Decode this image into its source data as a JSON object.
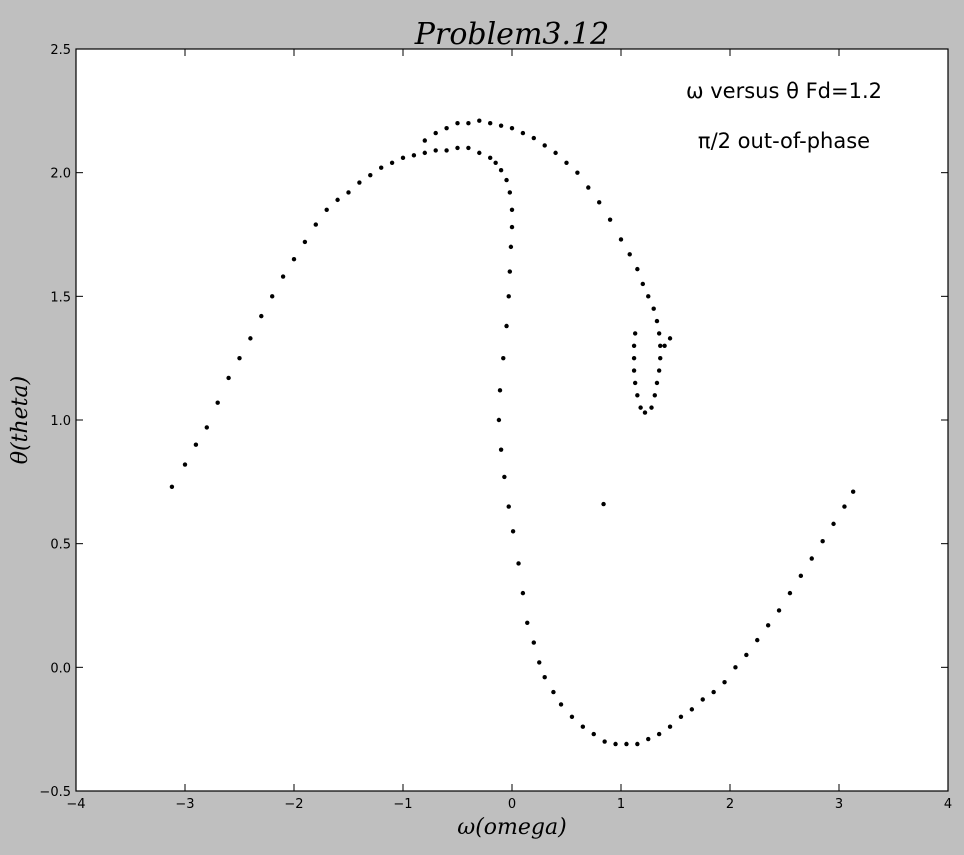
{
  "chart_data": {
    "type": "scatter",
    "title": "Problem3.12",
    "xlabel": "ω(omega)",
    "ylabel": "θ(theta)",
    "xlim": [
      -4,
      4
    ],
    "ylim": [
      -0.5,
      2.5
    ],
    "xticks": [
      -4,
      -3,
      -2,
      -1,
      0,
      1,
      2,
      3,
      4
    ],
    "xtick_labels": [
      "−4",
      "−3",
      "−2",
      "−1",
      "0",
      "1",
      "2",
      "3",
      "4"
    ],
    "yticks": [
      -0.5,
      0.0,
      0.5,
      1.0,
      1.5,
      2.0,
      2.5
    ],
    "ytick_labels": [
      "−0.5",
      "0.0",
      "0.5",
      "1.0",
      "1.5",
      "2.0",
      "2.5"
    ],
    "grid": false,
    "marker_color": "#000000",
    "background": "#ffffff",
    "figure_background": "#bfbfbf",
    "annotations": [
      {
        "text": "ω versus θ   Fd=1.2"
      },
      {
        "text": "π/2 out-of-phase"
      }
    ],
    "points": [
      [
        -3.12,
        0.73
      ],
      [
        -3.0,
        0.82
      ],
      [
        -2.9,
        0.9
      ],
      [
        -2.8,
        0.97
      ],
      [
        -2.7,
        1.07
      ],
      [
        -2.6,
        1.17
      ],
      [
        -2.5,
        1.25
      ],
      [
        -2.4,
        1.33
      ],
      [
        -2.3,
        1.42
      ],
      [
        -2.2,
        1.5
      ],
      [
        -2.1,
        1.58
      ],
      [
        -2.0,
        1.65
      ],
      [
        -1.9,
        1.72
      ],
      [
        -1.8,
        1.79
      ],
      [
        -1.7,
        1.85
      ],
      [
        -1.6,
        1.89
      ],
      [
        -1.5,
        1.92
      ],
      [
        -1.4,
        1.96
      ],
      [
        -1.3,
        1.99
      ],
      [
        -1.2,
        2.02
      ],
      [
        -1.1,
        2.04
      ],
      [
        -1.0,
        2.06
      ],
      [
        -0.9,
        2.07
      ],
      [
        -0.8,
        2.08
      ],
      [
        -0.7,
        2.09
      ],
      [
        -0.6,
        2.09
      ],
      [
        -0.5,
        2.1
      ],
      [
        -0.4,
        2.1
      ],
      [
        -0.3,
        2.08
      ],
      [
        -0.2,
        2.06
      ],
      [
        -0.15,
        2.04
      ],
      [
        -0.1,
        2.01
      ],
      [
        -0.05,
        1.97
      ],
      [
        -0.02,
        1.92
      ],
      [
        0.0,
        1.85
      ],
      [
        0.0,
        1.78
      ],
      [
        -0.01,
        1.7
      ],
      [
        -0.02,
        1.6
      ],
      [
        -0.03,
        1.5
      ],
      [
        -0.05,
        1.38
      ],
      [
        -0.08,
        1.25
      ],
      [
        -0.11,
        1.12
      ],
      [
        -0.12,
        1.0
      ],
      [
        -0.1,
        0.88
      ],
      [
        -0.07,
        0.77
      ],
      [
        -0.03,
        0.65
      ],
      [
        0.01,
        0.55
      ],
      [
        0.06,
        0.42
      ],
      [
        0.1,
        0.3
      ],
      [
        0.14,
        0.18
      ],
      [
        0.2,
        0.1
      ],
      [
        0.25,
        0.02
      ],
      [
        0.3,
        -0.04
      ],
      [
        0.38,
        -0.1
      ],
      [
        0.45,
        -0.15
      ],
      [
        0.55,
        -0.2
      ],
      [
        0.65,
        -0.24
      ],
      [
        0.75,
        -0.27
      ],
      [
        0.85,
        -0.3
      ],
      [
        0.95,
        -0.31
      ],
      [
        1.05,
        -0.31
      ],
      [
        1.15,
        -0.31
      ],
      [
        1.25,
        -0.29
      ],
      [
        1.35,
        -0.27
      ],
      [
        1.45,
        -0.24
      ],
      [
        1.55,
        -0.2
      ],
      [
        1.65,
        -0.17
      ],
      [
        1.75,
        -0.13
      ],
      [
        1.85,
        -0.1
      ],
      [
        1.95,
        -0.06
      ],
      [
        2.05,
        0.0
      ],
      [
        2.15,
        0.05
      ],
      [
        2.25,
        0.11
      ],
      [
        2.35,
        0.17
      ],
      [
        2.45,
        0.23
      ],
      [
        2.55,
        0.3
      ],
      [
        2.65,
        0.37
      ],
      [
        2.75,
        0.44
      ],
      [
        2.85,
        0.51
      ],
      [
        2.95,
        0.58
      ],
      [
        3.05,
        0.65
      ],
      [
        3.13,
        0.71
      ],
      [
        -0.8,
        2.13
      ],
      [
        -0.7,
        2.16
      ],
      [
        -0.6,
        2.18
      ],
      [
        -0.5,
        2.2
      ],
      [
        -0.4,
        2.2
      ],
      [
        -0.3,
        2.21
      ],
      [
        -0.2,
        2.2
      ],
      [
        -0.1,
        2.19
      ],
      [
        0.0,
        2.18
      ],
      [
        0.1,
        2.16
      ],
      [
        0.2,
        2.14
      ],
      [
        0.3,
        2.11
      ],
      [
        0.4,
        2.08
      ],
      [
        0.5,
        2.04
      ],
      [
        0.6,
        2.0
      ],
      [
        0.7,
        1.94
      ],
      [
        0.8,
        1.88
      ],
      [
        0.9,
        1.81
      ],
      [
        1.0,
        1.73
      ],
      [
        1.08,
        1.67
      ],
      [
        1.15,
        1.61
      ],
      [
        1.2,
        1.55
      ],
      [
        1.25,
        1.5
      ],
      [
        1.3,
        1.45
      ],
      [
        1.33,
        1.4
      ],
      [
        1.35,
        1.35
      ],
      [
        1.36,
        1.3
      ],
      [
        1.36,
        1.25
      ],
      [
        1.35,
        1.2
      ],
      [
        1.33,
        1.15
      ],
      [
        1.31,
        1.1
      ],
      [
        1.28,
        1.05
      ],
      [
        1.22,
        1.03
      ],
      [
        1.18,
        1.05
      ],
      [
        1.15,
        1.1
      ],
      [
        1.13,
        1.15
      ],
      [
        1.12,
        1.2
      ],
      [
        1.12,
        1.25
      ],
      [
        1.12,
        1.3
      ],
      [
        1.13,
        1.35
      ],
      [
        1.4,
        1.3
      ],
      [
        1.45,
        1.33
      ],
      [
        0.84,
        0.66
      ]
    ]
  }
}
